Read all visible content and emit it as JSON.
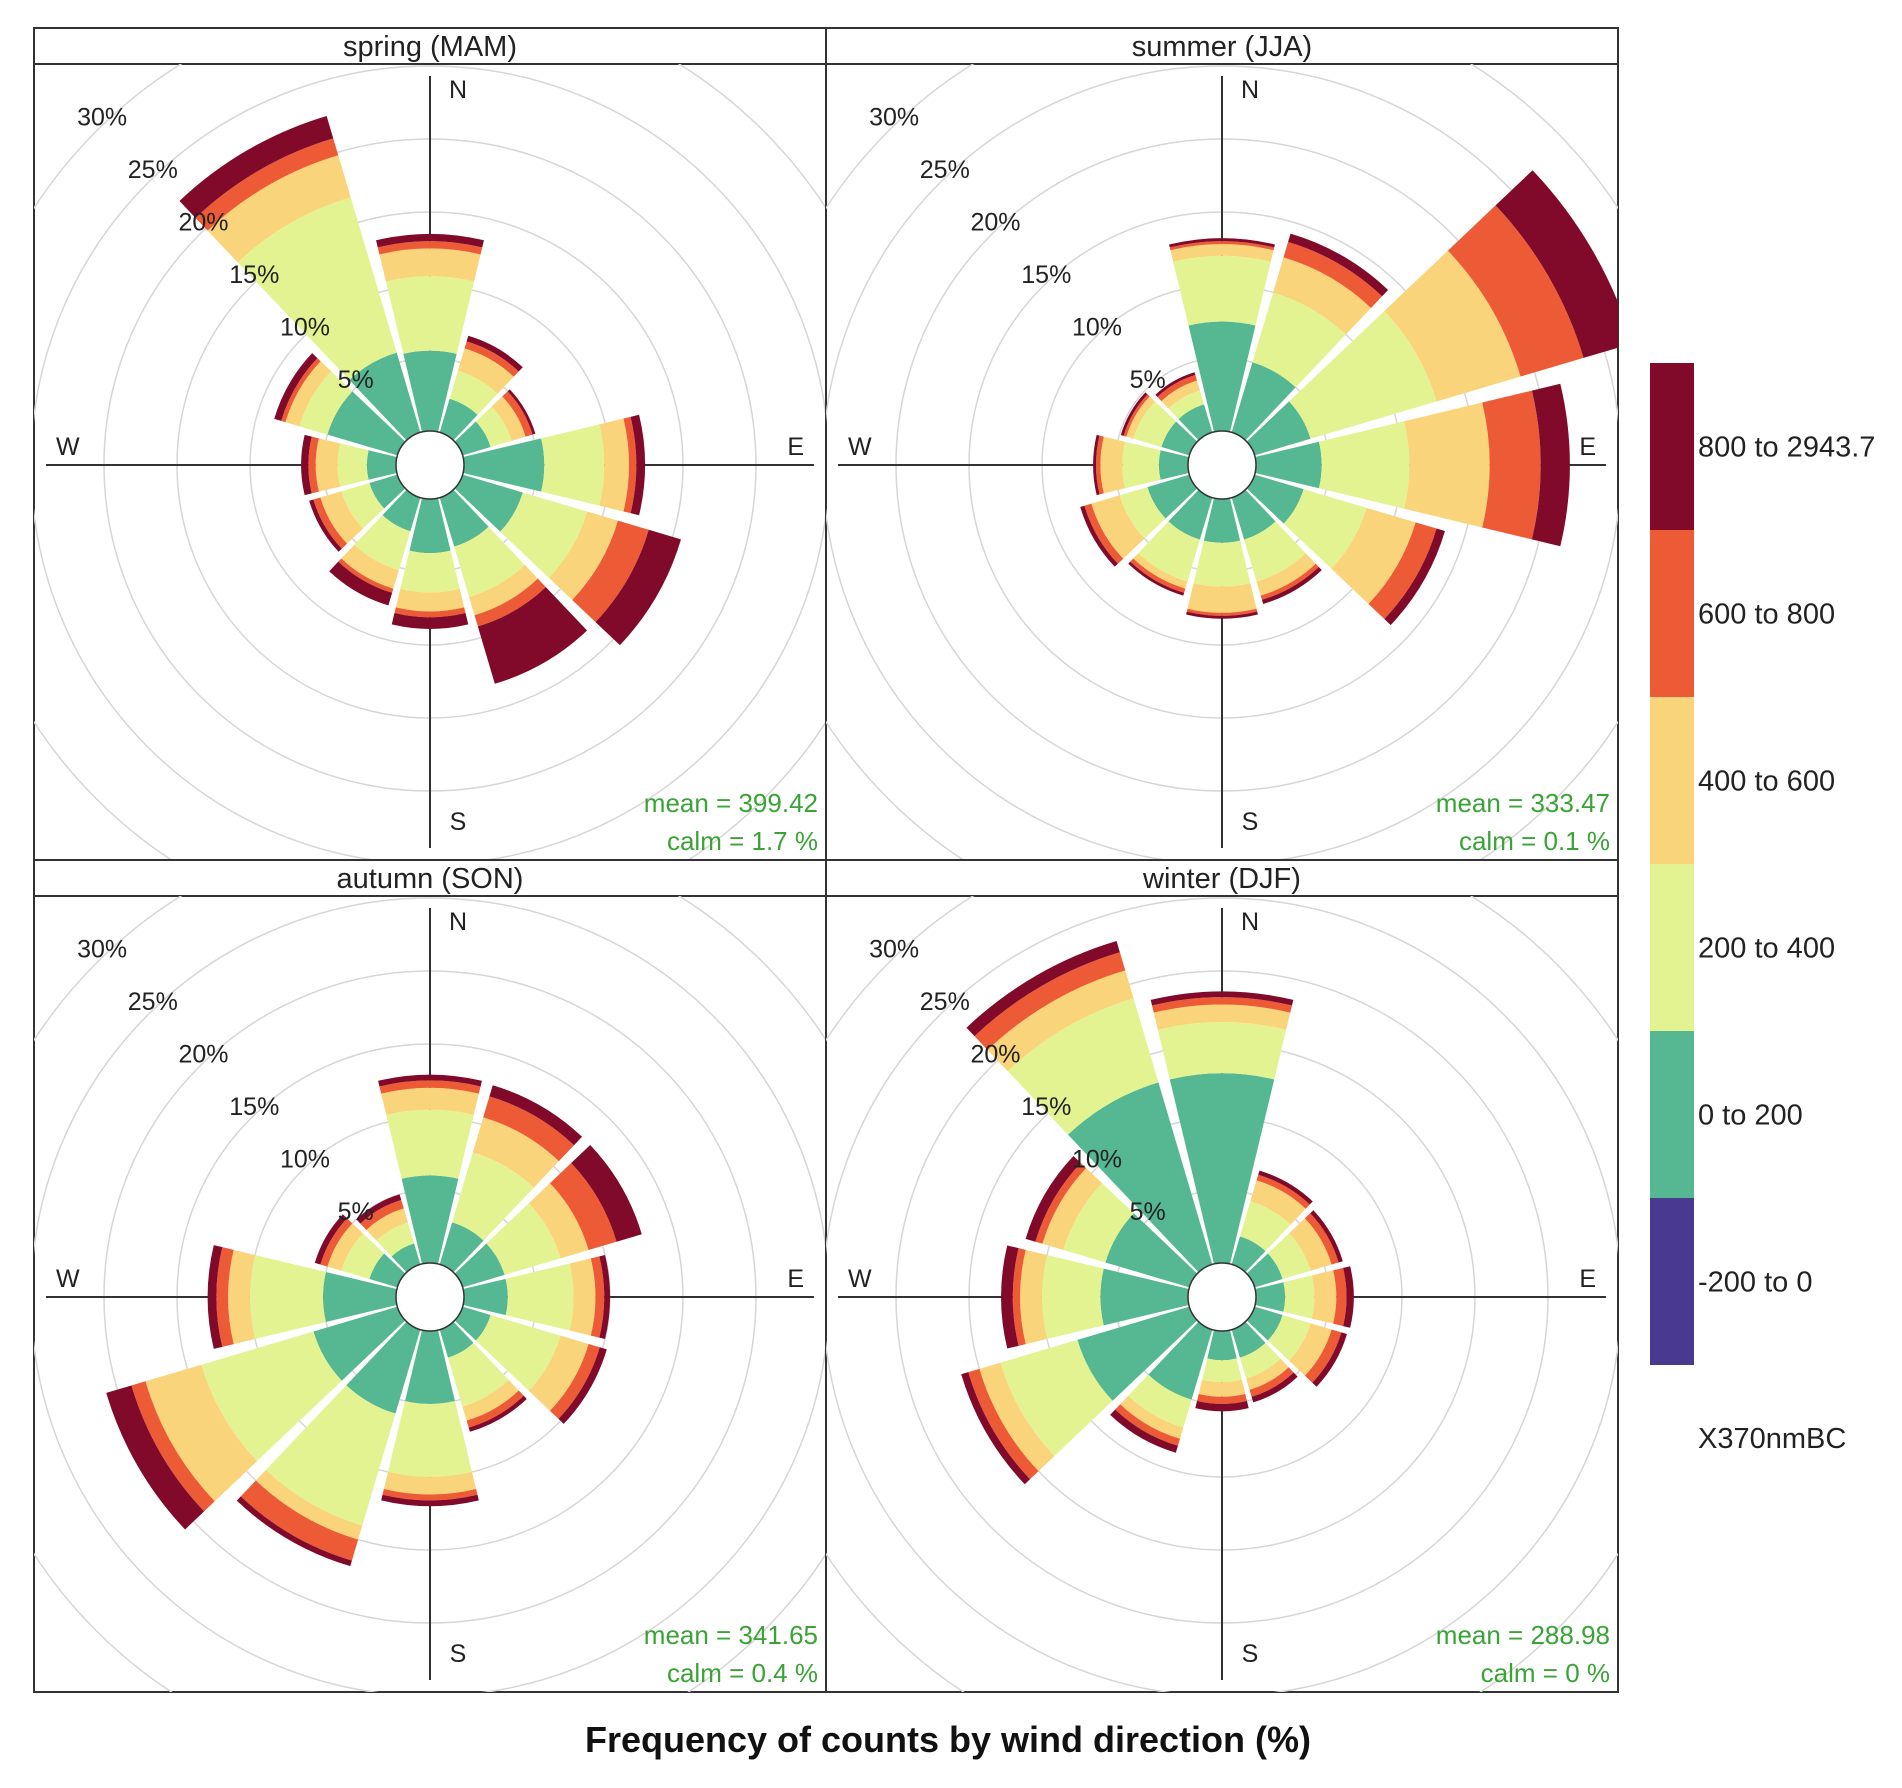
{
  "chart_data": {
    "type": "windrose",
    "title": "Frequency of counts by wind direction (%)",
    "pollutant": "X370nmBC",
    "compass_labels": [
      "N",
      "E",
      "S",
      "W"
    ],
    "ring_values": [
      5,
      10,
      15,
      20,
      25,
      30
    ],
    "ring_labels": [
      "5%",
      "10%",
      "15%",
      "20%",
      "25%",
      "30%"
    ],
    "directions_deg": [
      0,
      30,
      60,
      90,
      120,
      150,
      180,
      210,
      240,
      270,
      300,
      330
    ],
    "bins": [
      {
        "label": "-200 to 0",
        "color": "#4a3a8f"
      },
      {
        "label": "0 to 200",
        "color": "#56b893"
      },
      {
        "label": "200 to 400",
        "color": "#e4f392"
      },
      {
        "label": "400 to 600",
        "color": "#fad47a"
      },
      {
        "label": "600 to 800",
        "color": "#ec5b35"
      },
      {
        "label": "800 to 2943.7",
        "color": "#810a2b"
      }
    ],
    "mean_label": "mean",
    "calm_label": "calm",
    "stat_color": "#3aa336",
    "panels": [
      {
        "title": "spring (MAM)",
        "mean_text": "399.42",
        "calm_text": "1.7 %",
        "cumulative": [
          [
            5.5,
            10.6,
            12.5,
            13.0,
            13.5
          ],
          [
            2.4,
            4.4,
            6.0,
            6.5,
            6.9
          ],
          [
            2.0,
            3.5,
            4.5,
            5.0,
            5.2
          ],
          [
            5.5,
            9.6,
            11.3,
            11.8,
            12.4
          ],
          [
            4.3,
            8.9,
            11.1,
            13.3,
            15.6
          ],
          [
            3.5,
            7.1,
            8.4,
            9.2,
            13.3
          ],
          [
            3.7,
            6.4,
            7.7,
            8.1,
            8.9
          ],
          [
            2.4,
            5.2,
            6.5,
            6.8,
            7.7
          ],
          [
            2.0,
            4.0,
            5.5,
            6.0,
            6.3
          ],
          [
            2.0,
            4.0,
            5.5,
            6.0,
            6.5
          ],
          [
            5.0,
            7.0,
            8.0,
            8.3,
            8.8
          ],
          [
            5.7,
            16.8,
            19.8,
            21.0,
            22.6
          ]
        ]
      },
      {
        "title": "summer (JJA)",
        "mean_text": "333.47",
        "calm_text": "0.1 %",
        "cumulative": [
          [
            7.5,
            12.0,
            12.8,
            13.0,
            13.2
          ],
          [
            5.0,
            10.0,
            12.5,
            13.6,
            14.2
          ],
          [
            4.0,
            13.0,
            19.0,
            23.5,
            27.0
          ],
          [
            4.5,
            10.5,
            16.0,
            19.5,
            21.5
          ],
          [
            3.5,
            8.0,
            11.5,
            13.0,
            13.6
          ],
          [
            3.0,
            6.0,
            7.0,
            7.3,
            7.6
          ],
          [
            3.0,
            6.0,
            7.8,
            8.0,
            8.2
          ],
          [
            3.0,
            6.0,
            6.5,
            6.8,
            7.0
          ],
          [
            3.0,
            5.0,
            7.0,
            7.5,
            7.8
          ],
          [
            2.0,
            4.5,
            6.0,
            6.3,
            6.5
          ],
          [
            2.0,
            4.0,
            4.5,
            4.7,
            4.9
          ],
          [
            2.0,
            3.0,
            3.7,
            4.1,
            4.3
          ]
        ]
      },
      {
        "title": "autumn (SON)",
        "mean_text": "341.65",
        "calm_text": "0.4 %",
        "cumulative": [
          [
            6.0,
            10.5,
            12.0,
            12.5,
            12.9
          ],
          [
            3.0,
            8.0,
            10.5,
            12.0,
            12.8
          ],
          [
            3.0,
            7.0,
            9.0,
            11.0,
            12.8
          ],
          [
            3.0,
            7.5,
            9.0,
            9.6,
            10.0
          ],
          [
            2.0,
            7.0,
            9.0,
            9.8,
            10.3
          ],
          [
            2.0,
            5.5,
            6.5,
            7.0,
            7.3
          ],
          [
            5.0,
            10.0,
            11.2,
            11.6,
            12.0
          ],
          [
            6.0,
            14.0,
            15.0,
            16.5,
            16.9
          ],
          [
            6.0,
            14.0,
            18.0,
            19.0,
            20.8
          ],
          [
            5.0,
            10.0,
            11.5,
            12.3,
            12.9
          ],
          [
            2.0,
            4.0,
            5.0,
            5.5,
            5.9
          ],
          [
            1.5,
            3.0,
            4.0,
            4.6,
            5.0
          ]
        ]
      },
      {
        "title": "winter (DJF)",
        "mean_text": "288.98",
        "calm_text": "0 %",
        "cumulative": [
          [
            13.0,
            16.5,
            17.7,
            18.2,
            18.6
          ],
          [
            2.0,
            4.5,
            6.0,
            6.4,
            6.7
          ],
          [
            2.0,
            4.0,
            5.5,
            6.0,
            6.3
          ],
          [
            2.0,
            4.0,
            5.5,
            6.2,
            6.7
          ],
          [
            2.0,
            4.0,
            5.5,
            6.2,
            6.6
          ],
          [
            2.0,
            3.5,
            4.3,
            4.8,
            5.2
          ],
          [
            2.0,
            3.5,
            4.5,
            5.0,
            5.5
          ],
          [
            5.0,
            7.0,
            7.8,
            8.3,
            8.8
          ],
          [
            8.0,
            13.5,
            15.0,
            15.8,
            16.3
          ],
          [
            6.0,
            10.0,
            11.5,
            12.0,
            12.8
          ],
          [
            6.0,
            9.0,
            10.5,
            11.0,
            11.7
          ],
          [
            13.0,
            19.0,
            21.0,
            22.3,
            23.1
          ]
        ]
      }
    ]
  }
}
